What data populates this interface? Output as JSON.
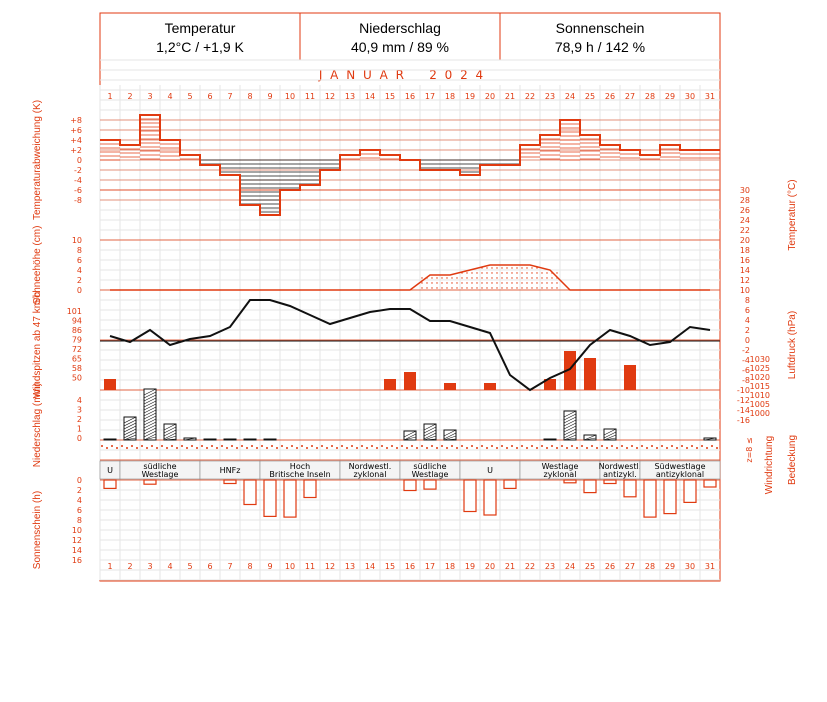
{
  "header": {
    "temp_title": "Temperatur",
    "temp_value": "1,2°C / +1,9 K",
    "precip_title": "Niederschlag",
    "precip_value": "40,9 mm / 89 %",
    "sun_title": "Sonnenschein",
    "sun_value": "78,9 h / 142 %"
  },
  "month_title": "J A N U A R    2 0 2 4",
  "days": [
    "1",
    "2",
    "3",
    "4",
    "5",
    "6",
    "7",
    "8",
    "9",
    "10",
    "11",
    "12",
    "13",
    "14",
    "15",
    "16",
    "17",
    "18",
    "19",
    "20",
    "21",
    "22",
    "23",
    "24",
    "25",
    "26",
    "27",
    "28",
    "29",
    "30",
    "31"
  ],
  "labels": {
    "temp_dev": "Temperaturabweichung (K)",
    "temp_right": "Temperatur (°C)",
    "snow": "Schneehöhe (cm)",
    "wind": "Windspitzen ab 47 km/h",
    "pressure": "Luftdruck (hPa)",
    "precip": "Niederschlag (mm)",
    "winddir": "Windrichtung",
    "cloud": "Bedeckung",
    "cloud_marks": "z=8 ≤",
    "sun": "Sonnenschein (h)"
  },
  "axes": {
    "temp_dev_ticks": [
      "+8",
      "+6",
      "+4",
      "+2",
      "0",
      "-2",
      "-4",
      "-6",
      "-8"
    ],
    "temp_right_ticks": [
      "30",
      "28",
      "26",
      "24",
      "22",
      "20",
      "18",
      "16",
      "14",
      "12",
      "10",
      "8",
      "6",
      "4",
      "2",
      "0",
      "-2",
      "-4",
      "-6",
      "-8",
      "-10",
      "-12",
      "-14",
      "-16"
    ],
    "snow_ticks": [
      "10",
      "8",
      "6",
      "4",
      "2",
      "0"
    ],
    "wind_ticks": [
      "101",
      "94",
      "86",
      "79",
      "72",
      "65",
      "58",
      "50"
    ],
    "precip_ticks": [
      "4",
      "3",
      "2",
      "1",
      "0"
    ],
    "pressure_ticks": [
      "1030",
      "1025",
      "1020",
      "1015",
      "1010",
      "1005",
      "1000"
    ],
    "sun_ticks": [
      "0",
      "2",
      "4",
      "6",
      "8",
      "10",
      "12",
      "14",
      "16"
    ]
  },
  "weather_types": [
    {
      "from": 1,
      "to": 1,
      "label": "U"
    },
    {
      "from": 2,
      "to": 5,
      "label": "südliche\nWestlage"
    },
    {
      "from": 6,
      "to": 8,
      "label": "HNFz"
    },
    {
      "from": 9,
      "to": 12,
      "label": "Hoch\nBritische Inseln"
    },
    {
      "from": 13,
      "to": 15,
      "label": "Nordwestl.\nzyklonal"
    },
    {
      "from": 16,
      "to": 18,
      "label": "südliche\nWestlage"
    },
    {
      "from": 19,
      "to": 21,
      "label": "U"
    },
    {
      "from": 22,
      "to": 25,
      "label": "Westlage\nzyklonal"
    },
    {
      "from": 26,
      "to": 27,
      "label": "Nordwestl.\nantizykl."
    },
    {
      "from": 28,
      "to": 31,
      "label": "Südwestlage\nantizyklonal"
    }
  ],
  "chart_data": {
    "type": "climate-diagram",
    "x": [
      1,
      2,
      3,
      4,
      5,
      6,
      7,
      8,
      9,
      10,
      11,
      12,
      13,
      14,
      15,
      16,
      17,
      18,
      19,
      20,
      21,
      22,
      23,
      24,
      25,
      26,
      27,
      28,
      29,
      30,
      31
    ],
    "temperature_anomaly_K": [
      4,
      3,
      9,
      4,
      1,
      -1,
      -3,
      -9,
      -11,
      -6,
      -5,
      -2,
      1,
      2,
      1,
      0,
      -2,
      -2,
      -3,
      -1,
      -1,
      3,
      5,
      8,
      5,
      3,
      2,
      1,
      3,
      2,
      2
    ],
    "snow_depth_cm": [
      0,
      0,
      0,
      0,
      0,
      0,
      0,
      0,
      0,
      0,
      0,
      0,
      0,
      0,
      0,
      0,
      3,
      3,
      4,
      5,
      5,
      5,
      4,
      0,
      0,
      0,
      0,
      0,
      0,
      0,
      0
    ],
    "wind_gust_kmh": [
      58,
      0,
      0,
      0,
      0,
      0,
      0,
      0,
      0,
      0,
      0,
      0,
      0,
      0,
      58,
      65,
      0,
      54,
      0,
      54,
      0,
      0,
      58,
      86,
      79,
      0,
      72,
      0,
      0,
      0,
      0
    ],
    "precip_mm": [
      0.1,
      2.3,
      5.1,
      1.6,
      0.2,
      0.1,
      0.1,
      0.1,
      0.1,
      0,
      0,
      0,
      0,
      0,
      0,
      0.9,
      1.6,
      1.0,
      0,
      0,
      0,
      0,
      0.1,
      2.9,
      0.5,
      1.1,
      0,
      0,
      0,
      0,
      0.2
    ],
    "sunshine_h": [
      1,
      0,
      0.5,
      0,
      0,
      0.5,
      0,
      0,
      0,
      4,
      2,
      0,
      0,
      0,
      0,
      2,
      1.8,
      0,
      0,
      5,
      0,
      1,
      0,
      0,
      0.5,
      0,
      2,
      0,
      0,
      0,
      1,
      1.5,
      3,
      4,
      3,
      0,
      0,
      0
    ],
    "sunshine_h_daily": [
      1.2,
      0,
      0.6,
      0,
      0,
      0,
      0.5,
      3.5,
      5.2,
      5.3,
      2.5,
      0,
      0,
      0,
      0,
      1.5,
      1.3,
      0,
      4.5,
      5.0,
      1.2,
      0,
      0,
      0.4,
      1.8,
      0.5,
      2.4,
      5.3,
      4.8,
      3.2,
      1.0
    ],
    "pressure_hPa": [
      1028,
      1026,
      1030,
      1025,
      1027,
      1028,
      1031,
      1040,
      1040,
      1038,
      1035,
      1032,
      1034,
      1036,
      1037,
      1037,
      1033,
      1033,
      1031,
      1029,
      1015,
      1010,
      1014,
      1017,
      1025,
      1030,
      1028,
      1025,
      1026,
      1031,
      1030
    ],
    "temperature_right_ticks_C": [
      30,
      28,
      26,
      24,
      22,
      20,
      18,
      16,
      14,
      12,
      10,
      8,
      6,
      4,
      2,
      0,
      -2,
      -4,
      -6,
      -8,
      -10,
      -12,
      -14,
      -16
    ]
  }
}
